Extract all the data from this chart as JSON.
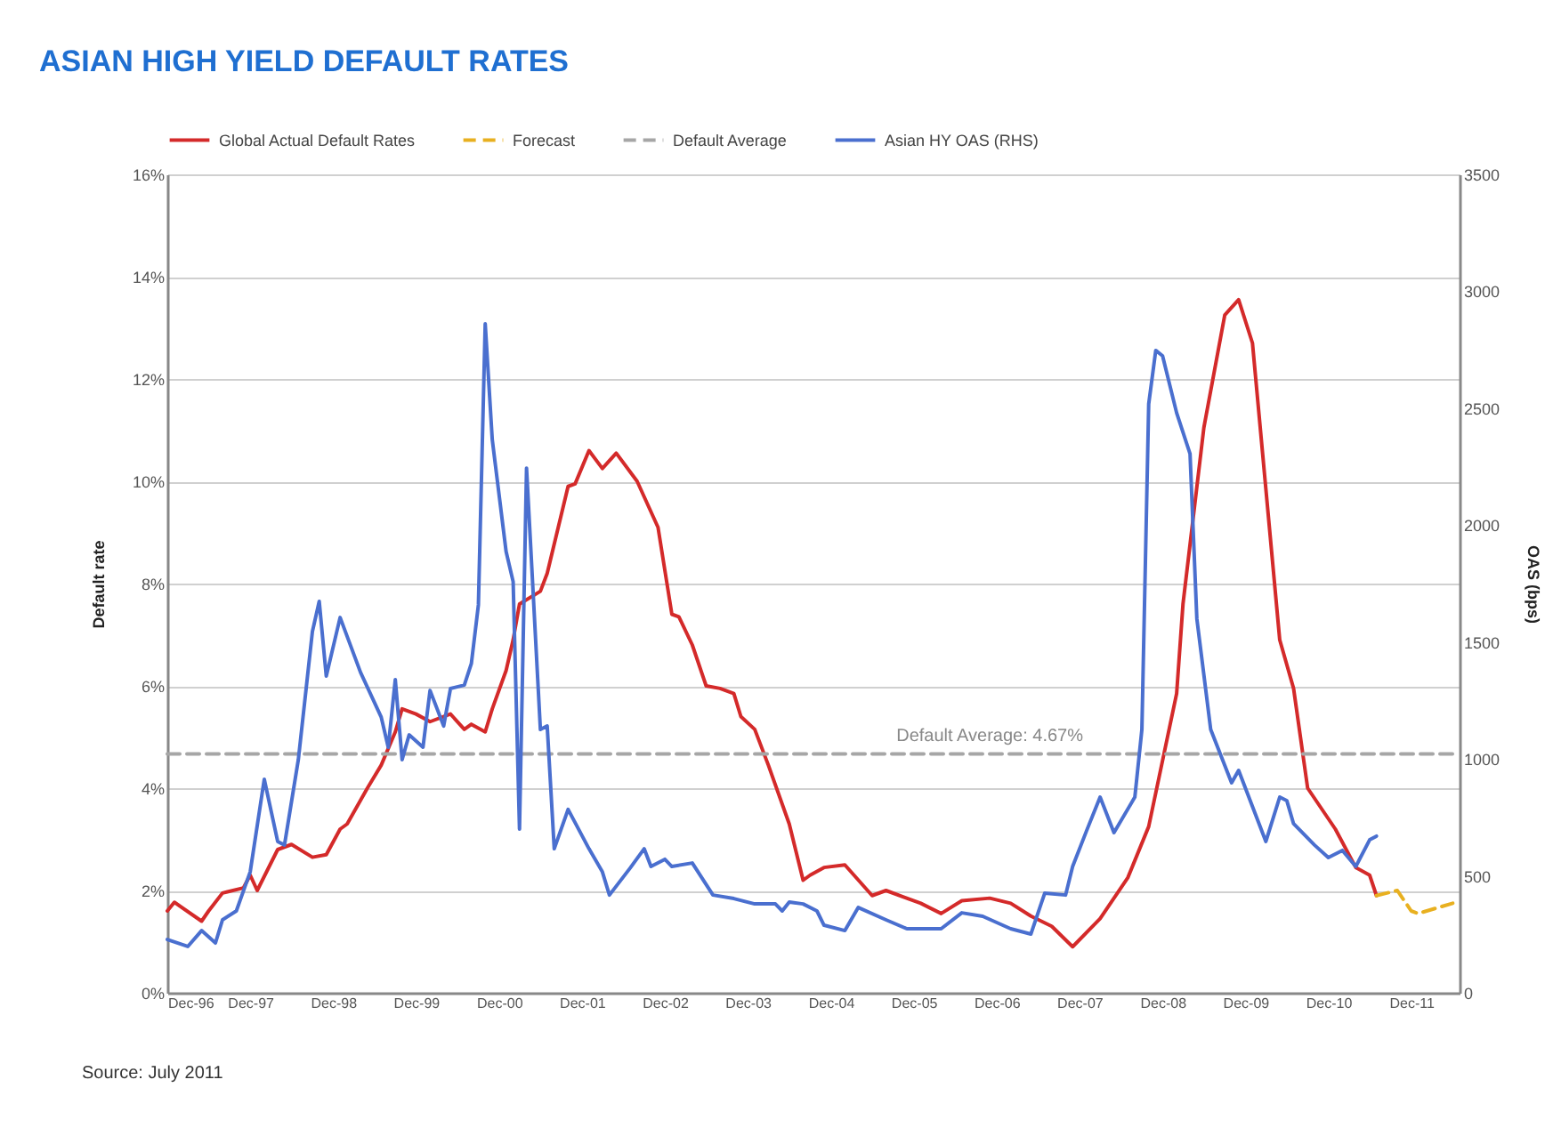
{
  "chart_data": {
    "type": "line",
    "title": "ASIAN HIGH YIELD DEFAULT RATES",
    "ylabel": "Default rate",
    "y2label": "OAS (bps)",
    "xlim": [
      "1996-12",
      "2012-07"
    ],
    "xticks": [
      {
        "value": "1996-12",
        "label": "Dec-96"
      },
      {
        "value": "1997-12",
        "label": "Dec-97"
      },
      {
        "value": "1998-12",
        "label": "Dec-98"
      },
      {
        "value": "1999-12",
        "label": "Dec-99"
      },
      {
        "value": "2000-12",
        "label": "Dec-00"
      },
      {
        "value": "2001-12",
        "label": "Dec-01"
      },
      {
        "value": "2002-12",
        "label": "Dec-02"
      },
      {
        "value": "2003-12",
        "label": "Dec-03"
      },
      {
        "value": "2004-12",
        "label": "Dec-04"
      },
      {
        "value": "2005-12",
        "label": "Dec-05"
      },
      {
        "value": "2006-12",
        "label": "Dec-06"
      },
      {
        "value": "2007-12",
        "label": "Dec-07"
      },
      {
        "value": "2008-12",
        "label": "Dec-08"
      },
      {
        "value": "2009-12",
        "label": "Dec-09"
      },
      {
        "value": "2010-12",
        "label": "Dec-10"
      },
      {
        "value": "2011-12",
        "label": "Dec-11"
      }
    ],
    "ylim": [
      0,
      16
    ],
    "yticks": [
      {
        "value": 0,
        "label": "0%"
      },
      {
        "value": 2,
        "label": "2%"
      },
      {
        "value": 4,
        "label": "4%"
      },
      {
        "value": 6,
        "label": "6%"
      },
      {
        "value": 8,
        "label": "8%"
      },
      {
        "value": 10,
        "label": "10%"
      },
      {
        "value": 12,
        "label": "12%"
      },
      {
        "value": 14,
        "label": "14%"
      },
      {
        "value": 16,
        "label": "16%"
      }
    ],
    "y2lim": [
      0,
      3500
    ],
    "y2ticks": [
      0,
      500,
      1000,
      1500,
      2000,
      2500,
      3000,
      3500
    ],
    "grid": "y",
    "legend": "top",
    "marker": "none",
    "series": [
      {
        "name": "Global Actual Default Rates",
        "color": "#d42a2a",
        "line_style": "solid",
        "x": [
          "1996-12",
          "1997-01",
          "1997-05",
          "1997-06",
          "1997-08",
          "1997-11",
          "1997-12",
          "1998-01",
          "1998-04",
          "1998-06",
          "1998-09",
          "1998-11",
          "1999-01",
          "1999-02",
          "1999-05",
          "1999-07",
          "1999-09",
          "1999-10",
          "1999-12",
          "2000-02",
          "2000-05",
          "2000-07",
          "2000-08",
          "2000-10",
          "2000-11",
          "2001-01",
          "2001-02",
          "2001-03",
          "2001-06",
          "2001-07",
          "2001-10",
          "2001-11",
          "2002-01",
          "2002-03",
          "2002-05",
          "2002-08",
          "2002-11",
          "2003-01",
          "2003-02",
          "2003-04",
          "2003-06",
          "2003-08",
          "2003-10",
          "2003-11",
          "2004-01",
          "2004-03",
          "2004-06",
          "2004-08",
          "2004-09",
          "2004-11",
          "2005-02",
          "2005-06",
          "2005-08",
          "2006-01",
          "2006-04",
          "2006-07",
          "2006-11",
          "2007-02",
          "2007-05",
          "2007-08",
          "2007-11",
          "2008-03",
          "2008-07",
          "2008-10",
          "2009-02",
          "2009-03",
          "2009-06",
          "2009-09",
          "2009-11",
          "2010-01",
          "2010-05",
          "2010-07",
          "2010-09",
          "2011-01",
          "2011-04",
          "2011-06",
          "2011-07"
        ],
        "values": [
          1.6,
          1.77,
          1.4,
          1.6,
          1.95,
          2.05,
          2.3,
          2.0,
          2.8,
          2.9,
          2.65,
          2.7,
          3.2,
          3.3,
          4.0,
          4.45,
          5.1,
          5.55,
          5.45,
          5.3,
          5.45,
          5.15,
          5.25,
          5.1,
          5.55,
          6.3,
          6.9,
          7.6,
          7.85,
          8.2,
          9.9,
          9.95,
          10.6,
          10.25,
          10.55,
          10.0,
          9.1,
          7.4,
          7.35,
          6.8,
          6.0,
          5.95,
          5.85,
          5.4,
          5.15,
          4.45,
          3.3,
          2.2,
          2.3,
          2.45,
          2.5,
          1.9,
          2.0,
          1.75,
          1.55,
          1.8,
          1.85,
          1.75,
          1.5,
          1.3,
          0.9,
          1.45,
          2.25,
          3.25,
          5.85,
          7.6,
          11.05,
          13.25,
          13.55,
          12.7,
          6.9,
          5.95,
          4.0,
          3.2,
          2.45,
          2.3,
          1.9
        ]
      },
      {
        "name": "Forecast",
        "color": "#e8b020",
        "line_style": "dashed",
        "x": [
          "2011-07",
          "2011-10",
          "2011-12",
          "2012-01",
          "2012-06"
        ],
        "values": [
          1.9,
          2.0,
          1.6,
          1.55,
          1.75
        ]
      },
      {
        "name": "Default Average",
        "color": "#a6a6a6",
        "line_style": "dashed",
        "x": [
          "1996-12",
          "2012-07"
        ],
        "values": [
          4.67,
          4.67
        ]
      },
      {
        "name": "Asian HY OAS (RHS)",
        "axis": "y2",
        "color": "#4a6fcf",
        "line_style": "solid",
        "x": [
          "1996-12",
          "1997-03",
          "1997-05",
          "1997-07",
          "1997-08",
          "1997-10",
          "1997-12",
          "1998-02",
          "1998-04",
          "1998-05",
          "1998-07",
          "1998-09",
          "1998-10",
          "1998-11",
          "1999-01",
          "1999-04",
          "1999-07",
          "1999-08",
          "1999-09",
          "1999-10",
          "1999-11",
          "2000-01",
          "2000-02",
          "2000-04",
          "2000-05",
          "2000-07",
          "2000-08",
          "2000-09",
          "2000-10",
          "2000-11",
          "2001-01",
          "2001-02",
          "2001-03",
          "2001-04",
          "2001-06",
          "2001-07",
          "2001-08",
          "2001-10",
          "2002-01",
          "2002-03",
          "2002-04",
          "2002-07",
          "2002-09",
          "2002-10",
          "2002-12",
          "2003-01",
          "2003-04",
          "2003-07",
          "2003-10",
          "2004-01",
          "2004-04",
          "2004-05",
          "2004-06",
          "2004-08",
          "2004-10",
          "2004-11",
          "2005-02",
          "2005-04",
          "2005-08",
          "2005-11",
          "2006-04",
          "2006-07",
          "2006-10",
          "2007-02",
          "2007-05",
          "2007-07",
          "2007-10",
          "2007-11",
          "2008-01",
          "2008-03",
          "2008-05",
          "2008-08",
          "2008-09",
          "2008-10",
          "2008-11",
          "2008-12",
          "2009-02",
          "2009-04",
          "2009-05",
          "2009-07",
          "2009-10",
          "2009-11",
          "2010-03",
          "2010-05",
          "2010-06",
          "2010-07",
          "2010-10",
          "2010-12",
          "2011-02",
          "2011-04",
          "2011-06",
          "2011-07"
        ],
        "values": [
          228,
          198,
          266,
          213,
          312,
          350,
          517,
          913,
          647,
          632,
          997,
          1545,
          1674,
          1354,
          1605,
          1370,
          1179,
          1050,
          1339,
          997,
          1103,
          1050,
          1293,
          1141,
          1301,
          1316,
          1408,
          1659,
          2861,
          2366,
          1887,
          1758,
          700,
          2244,
          1126,
          1141,
          616,
          784,
          616,
          517,
          418,
          533,
          616,
          540,
          571,
          540,
          555,
          418,
          403,
          380,
          380,
          350,
          388,
          380,
          350,
          289,
          266,
          365,
          312,
          274,
          274,
          342,
          327,
          274,
          251,
          426,
          418,
          540,
          692,
          837,
          685,
          837,
          1126,
          2518,
          2747,
          2724,
          2480,
          2305,
          1600,
          1126,
          898,
          951,
          647,
          837,
          822,
          723,
          632,
          578,
          609,
          540,
          654,
          670
        ]
      }
    ],
    "annotations": [
      {
        "text": "Default Average: 4.67%",
        "x": "2006-11",
        "y": 4.67
      },
      "Source: July 2011"
    ]
  }
}
